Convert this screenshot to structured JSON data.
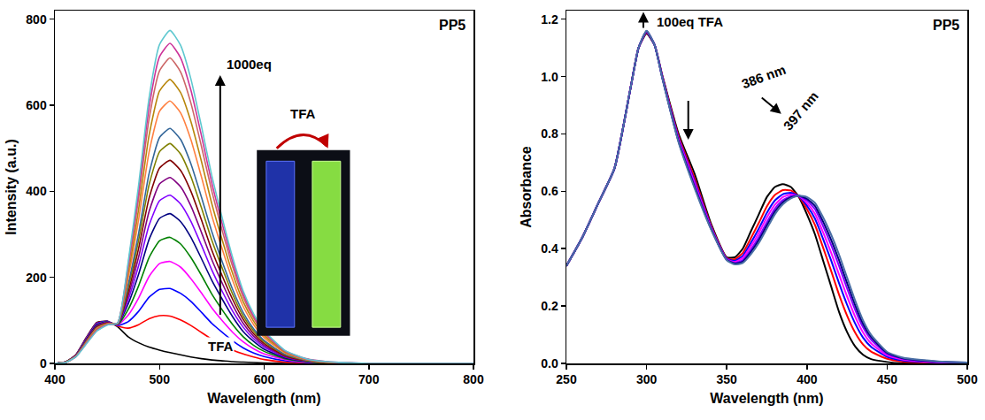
{
  "chart_data": [
    {
      "type": "line",
      "title": "PP5",
      "x_label": "Wavelength (nm)",
      "y_label": "Intensity (a.u.)",
      "x": [
        400,
        410,
        420,
        430,
        440,
        450,
        460,
        470,
        480,
        490,
        500,
        510,
        520,
        530,
        540,
        550,
        560,
        570,
        580,
        590,
        600,
        620,
        640,
        660,
        700,
        800
      ],
      "series": [
        {
          "color": "#000000",
          "values": [
            0,
            3,
            20,
            60,
            95,
            98,
            85,
            62,
            48,
            38,
            31,
            25,
            20,
            15,
            11,
            8,
            6,
            4,
            3,
            2,
            1,
            0,
            0,
            0,
            0,
            0
          ]
        },
        {
          "color": "#ff0000",
          "values": [
            0,
            3,
            20,
            59,
            94,
            98,
            87,
            82,
            90,
            104,
            111,
            110,
            101,
            88,
            72,
            56,
            43,
            31,
            22,
            15,
            9,
            3,
            1,
            0,
            0,
            0
          ]
        },
        {
          "color": "#0000ff",
          "values": [
            0,
            3,
            19,
            58,
            93,
            98,
            88,
            97,
            121,
            154,
            172,
            174,
            163,
            144,
            119,
            93,
            72,
            52,
            36,
            24,
            16,
            6,
            2,
            1,
            0,
            0
          ]
        },
        {
          "color": "#ff00ff",
          "values": [
            0,
            3,
            19,
            57,
            91,
            97,
            89,
            112,
            152,
            202,
            232,
            237,
            224,
            197,
            164,
            129,
            99,
            72,
            50,
            34,
            22,
            9,
            3,
            1,
            0,
            0
          ]
        },
        {
          "color": "#008000",
          "values": [
            0,
            3,
            19,
            56,
            90,
            97,
            90,
            125,
            180,
            246,
            285,
            293,
            278,
            246,
            205,
            161,
            124,
            90,
            62,
            42,
            28,
            11,
            4,
            1,
            0,
            0
          ]
        },
        {
          "color": "#000080",
          "values": [
            0,
            3,
            18,
            55,
            89,
            96,
            91,
            138,
            207,
            288,
            337,
            348,
            330,
            293,
            244,
            193,
            149,
            108,
            74,
            51,
            33,
            13,
            5,
            2,
            0,
            0
          ]
        },
        {
          "color": "#8000ff",
          "values": [
            0,
            3,
            18,
            54,
            87,
            96,
            91,
            148,
            227,
            321,
            378,
            391,
            371,
            330,
            275,
            217,
            167,
            121,
            84,
            57,
            38,
            15,
            6,
            2,
            0,
            0
          ]
        },
        {
          "color": "#800080",
          "values": [
            0,
            3,
            18,
            53,
            86,
            95,
            91,
            157,
            247,
            353,
            417,
            432,
            411,
            366,
            305,
            241,
            186,
            135,
            93,
            63,
            42,
            16,
            6,
            2,
            0,
            0
          ]
        },
        {
          "color": "#800000",
          "values": [
            0,
            3,
            17,
            52,
            85,
            94,
            92,
            166,
            267,
            384,
            454,
            472,
            449,
            400,
            334,
            263,
            203,
            148,
            102,
            69,
            46,
            18,
            7,
            2,
            0,
            0
          ]
        },
        {
          "color": "#808000",
          "values": [
            0,
            3,
            17,
            51,
            83,
            93,
            92,
            175,
            286,
            415,
            492,
            511,
            487,
            434,
            362,
            286,
            221,
            160,
            110,
            75,
            50,
            20,
            7,
            2,
            0,
            0
          ]
        },
        {
          "color": "#336699",
          "values": [
            0,
            2,
            17,
            50,
            82,
            92,
            92,
            183,
            302,
            441,
            525,
            546,
            521,
            464,
            387,
            306,
            236,
            171,
            118,
            80,
            53,
            21,
            8,
            3,
            0,
            0
          ]
        },
        {
          "color": "#ff8040",
          "values": [
            0,
            2,
            16,
            49,
            81,
            92,
            93,
            198,
            334,
            491,
            586,
            610,
            583,
            520,
            434,
            343,
            265,
            192,
            132,
            90,
            60,
            24,
            9,
            3,
            0,
            0
          ]
        },
        {
          "color": "#b8860b",
          "values": [
            0,
            2,
            16,
            48,
            79,
            91,
            94,
            210,
            358,
            530,
            633,
            660,
            630,
            562,
            470,
            371,
            286,
            208,
            143,
            98,
            65,
            26,
            10,
            3,
            0,
            0
          ]
        },
        {
          "color": "#cc6666",
          "values": [
            0,
            2,
            16,
            47,
            78,
            91,
            94,
            221,
            383,
            568,
            680,
            710,
            678,
            605,
            505,
            400,
            308,
            224,
            154,
            105,
            70,
            28,
            10,
            3,
            0,
            0
          ]
        },
        {
          "color": "#cc3399",
          "values": [
            0,
            2,
            15,
            46,
            76,
            90,
            94,
            229,
            399,
            595,
            713,
            744,
            711,
            635,
            530,
            419,
            324,
            235,
            162,
            110,
            73,
            29,
            11,
            4,
            0,
            0
          ]
        },
        {
          "color": "#5ec8d0",
          "values": [
            0,
            2,
            15,
            45,
            75,
            89,
            94,
            235,
            414,
            617,
            741,
            774,
            740,
            661,
            552,
            436,
            337,
            245,
            168,
            115,
            76,
            30,
            11,
            4,
            0,
            0
          ]
        }
      ],
      "xlim": [
        400,
        800
      ],
      "ylim": [
        0,
        820
      ],
      "xticks": [
        400,
        500,
        600,
        700,
        800
      ],
      "yticks": [
        0,
        200,
        400,
        600,
        800
      ],
      "grid": false,
      "annotations": [
        "1000eq",
        "TFA"
      ],
      "inset_label": "TFA"
    },
    {
      "type": "line",
      "title": "PP5",
      "x_label": "Wavelength (nm)",
      "y_label": "Absorbance",
      "x": [
        250,
        260,
        270,
        280,
        290,
        295,
        300,
        305,
        310,
        320,
        330,
        340,
        350,
        355,
        360,
        365,
        370,
        375,
        380,
        385,
        390,
        395,
        400,
        405,
        410,
        415,
        420,
        425,
        430,
        435,
        440,
        450,
        460,
        480,
        500
      ],
      "series": [
        {
          "color": "#000000",
          "values": [
            0.34,
            0.44,
            0.56,
            0.68,
            0.96,
            1.1,
            1.15,
            1.11,
            1.0,
            0.8,
            0.66,
            0.49,
            0.37,
            0.37,
            0.4,
            0.46,
            0.52,
            0.58,
            0.615,
            0.625,
            0.615,
            0.58,
            0.52,
            0.45,
            0.36,
            0.27,
            0.18,
            0.11,
            0.06,
            0.03,
            0.015,
            0.005,
            0,
            0,
            0
          ]
        },
        {
          "color": "#ff0000",
          "values": [
            0.34,
            0.44,
            0.56,
            0.68,
            0.96,
            1.1,
            1.153,
            1.11,
            0.997,
            0.791,
            0.645,
            0.484,
            0.367,
            0.363,
            0.385,
            0.436,
            0.49,
            0.547,
            0.587,
            0.604,
            0.603,
            0.582,
            0.538,
            0.483,
            0.405,
            0.324,
            0.24,
            0.167,
            0.108,
            0.066,
            0.041,
            0.016,
            0.006,
            0.002,
            0.001
          ]
        },
        {
          "color": "#0000ff",
          "values": [
            0.34,
            0.44,
            0.56,
            0.68,
            0.96,
            1.1,
            1.155,
            1.11,
            0.995,
            0.785,
            0.635,
            0.48,
            0.365,
            0.358,
            0.375,
            0.42,
            0.47,
            0.525,
            0.568,
            0.59,
            0.595,
            0.583,
            0.55,
            0.505,
            0.435,
            0.36,
            0.28,
            0.205,
            0.14,
            0.09,
            0.058,
            0.023,
            0.01,
            0.004,
            0.002
          ]
        },
        {
          "color": "#ff00ff",
          "values": [
            0.34,
            0.44,
            0.56,
            0.68,
            0.96,
            1.1,
            1.157,
            1.11,
            0.994,
            0.781,
            0.628,
            0.477,
            0.364,
            0.354,
            0.368,
            0.408,
            0.455,
            0.509,
            0.553,
            0.58,
            0.589,
            0.583,
            0.559,
            0.522,
            0.458,
            0.387,
            0.31,
            0.234,
            0.164,
            0.108,
            0.07,
            0.028,
            0.013,
            0.005,
            0.002
          ]
        },
        {
          "color": "#8000ff",
          "values": [
            0.34,
            0.44,
            0.56,
            0.68,
            0.96,
            1.1,
            1.158,
            1.11,
            0.992,
            0.776,
            0.62,
            0.474,
            0.362,
            0.35,
            0.36,
            0.396,
            0.44,
            0.492,
            0.539,
            0.569,
            0.583,
            0.584,
            0.568,
            0.538,
            0.48,
            0.414,
            0.34,
            0.262,
            0.188,
            0.126,
            0.083,
            0.033,
            0.016,
            0.006,
            0.002
          ]
        },
        {
          "color": "#000080",
          "values": [
            0.34,
            0.44,
            0.56,
            0.68,
            0.96,
            1.1,
            1.159,
            1.11,
            0.991,
            0.773,
            0.615,
            0.472,
            0.361,
            0.348,
            0.355,
            0.388,
            0.43,
            0.481,
            0.529,
            0.562,
            0.579,
            0.585,
            0.574,
            0.549,
            0.495,
            0.432,
            0.36,
            0.281,
            0.204,
            0.138,
            0.092,
            0.037,
            0.018,
            0.007,
            0.003
          ]
        },
        {
          "color": "#4a6fa5",
          "values": [
            0.34,
            0.44,
            0.56,
            0.68,
            0.96,
            1.1,
            1.16,
            1.11,
            0.99,
            0.77,
            0.61,
            0.47,
            0.36,
            0.345,
            0.35,
            0.38,
            0.42,
            0.47,
            0.52,
            0.555,
            0.575,
            0.585,
            0.58,
            0.56,
            0.51,
            0.45,
            0.38,
            0.3,
            0.22,
            0.15,
            0.1,
            0.04,
            0.02,
            0.008,
            0.003
          ]
        }
      ],
      "xlim": [
        250,
        500
      ],
      "ylim": [
        0,
        1.23
      ],
      "xticks": [
        250,
        300,
        350,
        400,
        450,
        500
      ],
      "yticks": [
        {
          "value": 0,
          "label": "0.0"
        },
        {
          "value": 0.2,
          "label": "0.2"
        },
        {
          "value": 0.4,
          "label": "0.4"
        },
        {
          "value": 0.6,
          "label": "0.6"
        },
        {
          "value": 0.8,
          "label": "0.8"
        },
        {
          "value": 1,
          "label": "1.0"
        },
        {
          "value": 1.2,
          "label": "1.2"
        }
      ],
      "grid": false,
      "annotations": [
        "100eq TFA",
        "386 nm",
        "397 nm"
      ]
    }
  ]
}
